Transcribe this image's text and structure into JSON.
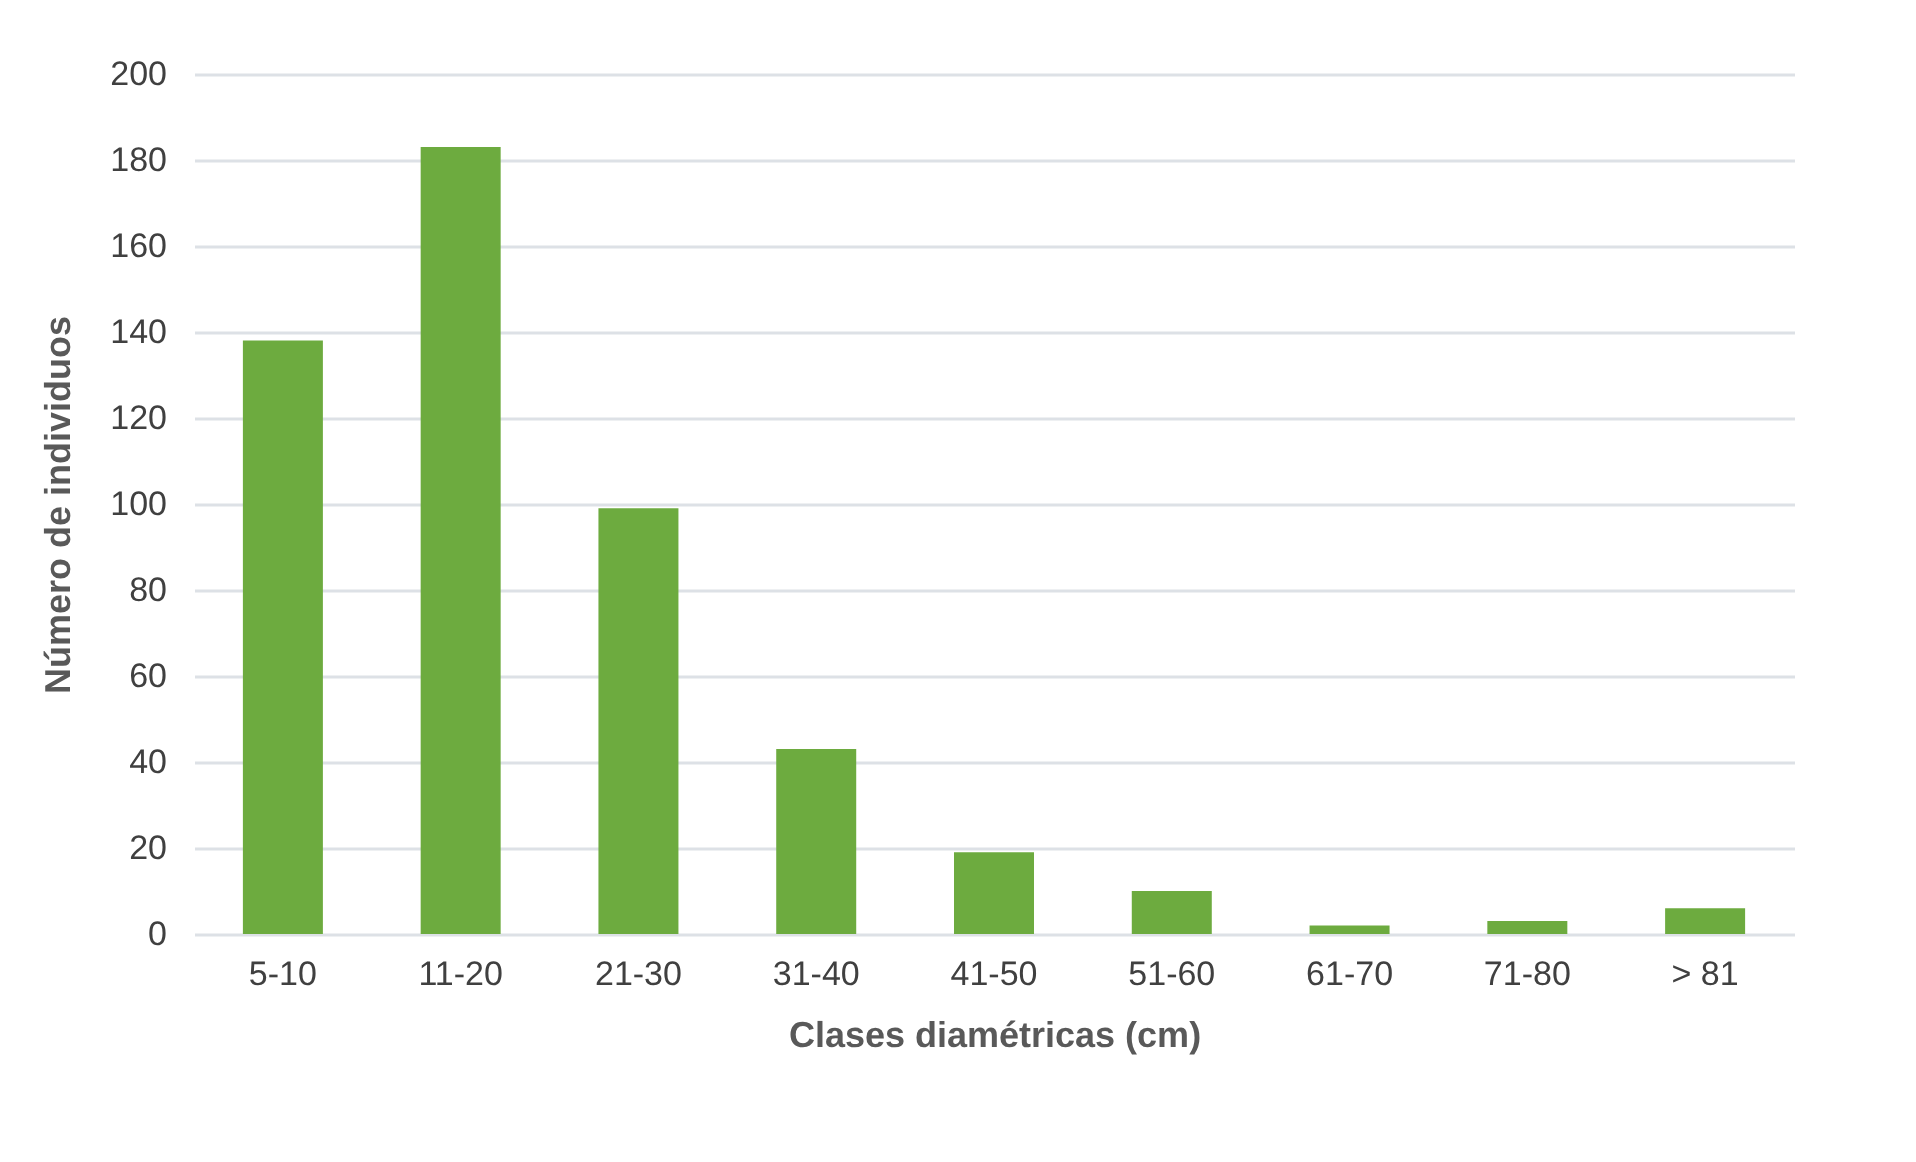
{
  "chart_data": {
    "type": "bar",
    "xlabel": "Clases diamétricas (cm)",
    "ylabel": "Número de individuos",
    "categories": [
      "5-10",
      "11-20",
      "21-30",
      "31-40",
      "41-50",
      "51-60",
      "61-70",
      "71-80",
      "> 81"
    ],
    "values": [
      138,
      183,
      99,
      43,
      19,
      10,
      2,
      3,
      6
    ],
    "color": "#6dab3f",
    "ylim": [
      0,
      200
    ],
    "yticks": [
      0,
      20,
      40,
      60,
      80,
      100,
      120,
      140,
      160,
      180,
      200
    ],
    "grid": "y"
  }
}
